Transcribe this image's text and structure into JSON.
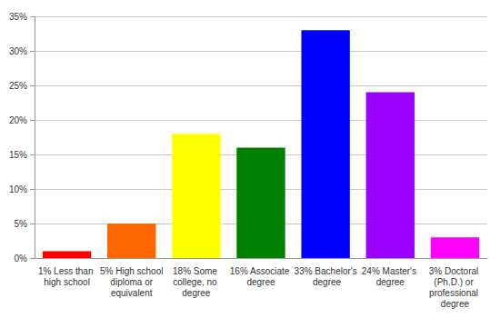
{
  "chart_data": {
    "type": "bar",
    "categories": [
      "1% Less than high school",
      "5% High school diploma or equivalent",
      "18% Some college, no degree",
      "16% Associate degree",
      "33% Bachelor's degree",
      "24% Master's degree",
      "3% Doctoral (Ph.D.) or professional degree"
    ],
    "values": [
      1,
      5,
      18,
      16,
      33,
      24,
      3
    ],
    "colors": [
      "#ff0000",
      "#ff6600",
      "#ffff00",
      "#008000",
      "#0000ff",
      "#9900ff",
      "#ff00ff"
    ],
    "ylim": [
      0,
      35
    ],
    "yticks": [
      {
        "value": 0,
        "label": "0%"
      },
      {
        "value": 5,
        "label": "5%"
      },
      {
        "value": 10,
        "label": "10%"
      },
      {
        "value": 15,
        "label": "15%"
      },
      {
        "value": 20,
        "label": "20%"
      },
      {
        "value": 25,
        "label": "25%"
      },
      {
        "value": 30,
        "label": "30%"
      },
      {
        "value": 35,
        "label": "35%"
      }
    ],
    "grid": true
  }
}
